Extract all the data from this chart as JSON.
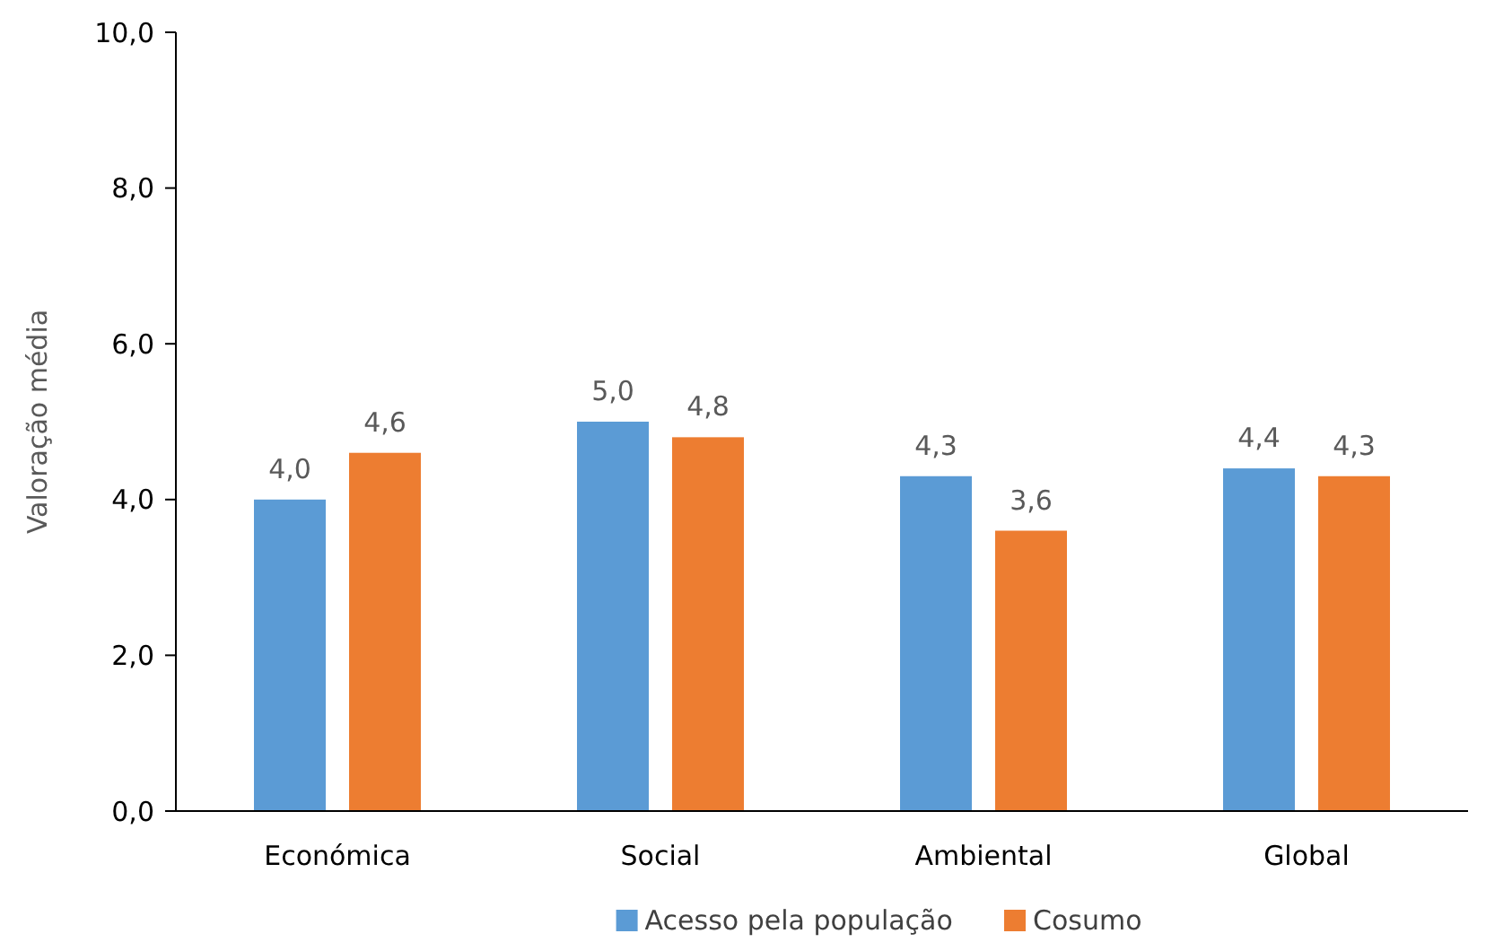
{
  "chart_data": {
    "type": "bar",
    "ylabel": "Valoração média",
    "categories": [
      "Económica",
      "Social",
      "Ambiental",
      "Global"
    ],
    "series": [
      {
        "name": "Acesso pela população",
        "color": "#5b9bd5",
        "values": [
          4.0,
          5.0,
          4.3,
          4.4
        ],
        "value_labels": [
          "4,0",
          "5,0",
          "4,3",
          "4,4"
        ]
      },
      {
        "name": "Cosumo",
        "color": "#ed7d31",
        "values": [
          4.6,
          4.8,
          3.6,
          4.3
        ],
        "value_labels": [
          "4,6",
          "4,8",
          "3,6",
          "4,3"
        ]
      }
    ],
    "ylim": [
      0,
      10
    ],
    "yticks": [
      {
        "value": 0,
        "label": "0,0"
      },
      {
        "value": 2,
        "label": "2,0"
      },
      {
        "value": 4,
        "label": "4,0"
      },
      {
        "value": 6,
        "label": "6,0"
      },
      {
        "value": 8,
        "label": "8,0"
      },
      {
        "value": 10,
        "label": "10,0"
      }
    ],
    "grid": false,
    "legend": "bottom"
  }
}
